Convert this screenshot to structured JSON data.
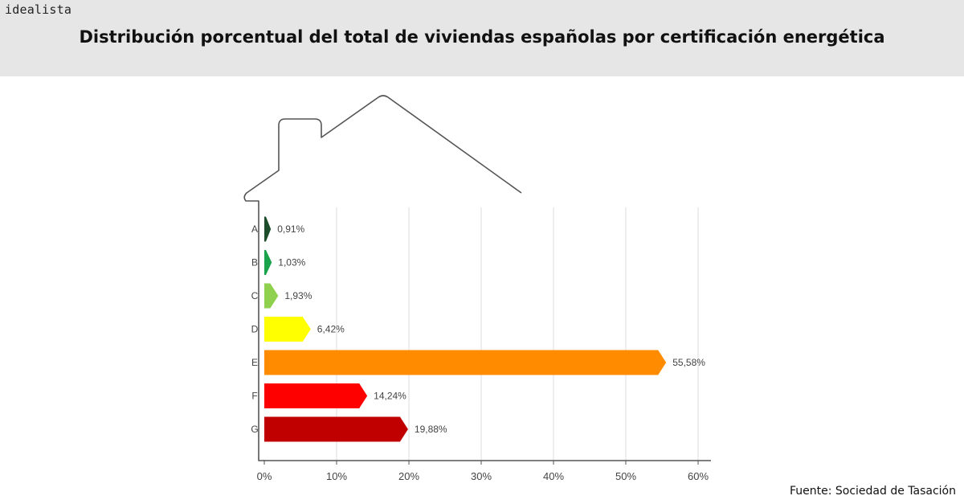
{
  "brand": "idealista",
  "title": "Distribución porcentual del total de viviendas españolas por certificación energética",
  "source": "Fuente: Sociedad de Tasación",
  "chart_data": {
    "type": "bar",
    "orientation": "horizontal",
    "categories": [
      "A",
      "B",
      "C",
      "D",
      "E",
      "F",
      "G"
    ],
    "values": [
      0.91,
      1.03,
      1.93,
      6.42,
      55.58,
      14.24,
      19.88
    ],
    "value_labels": [
      "0,91%",
      "1,03%",
      "1,93%",
      "6,42%",
      "55,58%",
      "14,24%",
      "19,88%"
    ],
    "colors": [
      "#1e4d2b",
      "#1aa34a",
      "#8fd14f",
      "#ffff00",
      "#ff8c00",
      "#ff0000",
      "#c00000"
    ],
    "xlim": [
      0,
      60
    ],
    "xticks": [
      "0%",
      "10%",
      "20%",
      "30%",
      "40%",
      "50%",
      "60%"
    ],
    "grid": true
  }
}
